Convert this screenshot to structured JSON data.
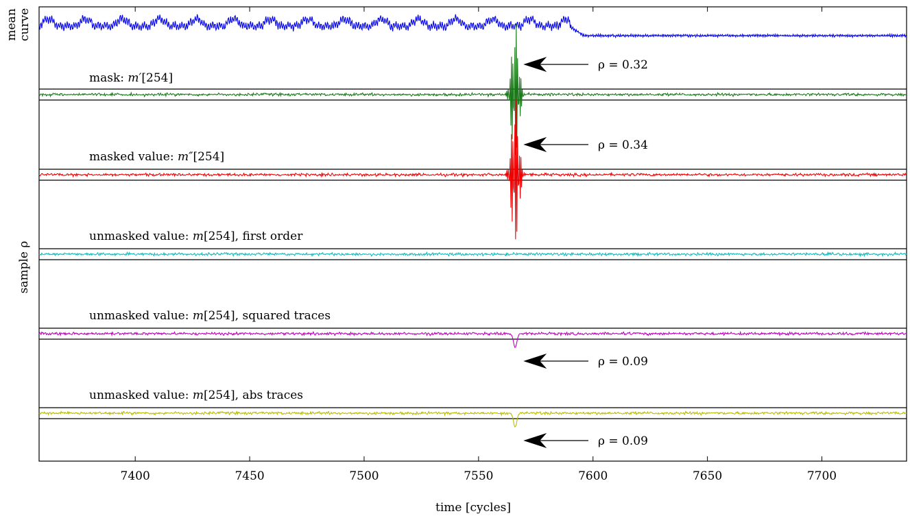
{
  "chart_data": {
    "type": "line",
    "xlabel": "time [cycles]",
    "ylabel_top": "mean curve",
    "ylabel": "sample ρ",
    "xlim": [
      7358,
      7737
    ],
    "xticks": [
      7400,
      7450,
      7500,
      7550,
      7600,
      7650,
      7700
    ],
    "leak_x": 7566,
    "series": [
      {
        "name": "mean curve",
        "color": "#0000ee",
        "kind": "mean",
        "label": "",
        "annotation": "",
        "peak_direction": "none"
      },
      {
        "name": "mask: m′[254]",
        "label_text": "mask: ",
        "label_math": "m′",
        "label_rest": "[254]",
        "color": "#1a7a1a",
        "kind": "correlation",
        "annotation": "ρ = 0.32",
        "peak_rho": 0.32,
        "peak_direction": "up"
      },
      {
        "name": "masked value: m″[254]",
        "label_text": "masked value: ",
        "label_math": "m″",
        "label_rest": "[254]",
        "color": "#ee0000",
        "kind": "correlation",
        "annotation": "ρ = 0.34",
        "peak_rho": 0.34,
        "peak_direction": "up"
      },
      {
        "name": "unmasked value: m[254], first order",
        "label_text": "unmasked value: ",
        "label_math": "m",
        "label_rest": "[254], first order",
        "color": "#11bbbb",
        "kind": "correlation",
        "annotation": "",
        "peak_rho": 0,
        "peak_direction": "none"
      },
      {
        "name": "unmasked value: m[254], squared traces",
        "label_text": "unmasked value: ",
        "label_math": "m",
        "label_rest": "[254], squared traces",
        "color": "#bb00bb",
        "kind": "correlation",
        "annotation": "ρ = 0.09",
        "peak_rho": 0.09,
        "peak_direction": "down"
      },
      {
        "name": "unmasked value: m[254], abs traces",
        "label_text": "unmasked value: ",
        "label_math": "m",
        "label_rest": "[254], abs traces",
        "color": "#bbbb00",
        "kind": "correlation",
        "annotation": "ρ = 0.09",
        "peak_rho": 0.09,
        "peak_direction": "down"
      }
    ]
  }
}
